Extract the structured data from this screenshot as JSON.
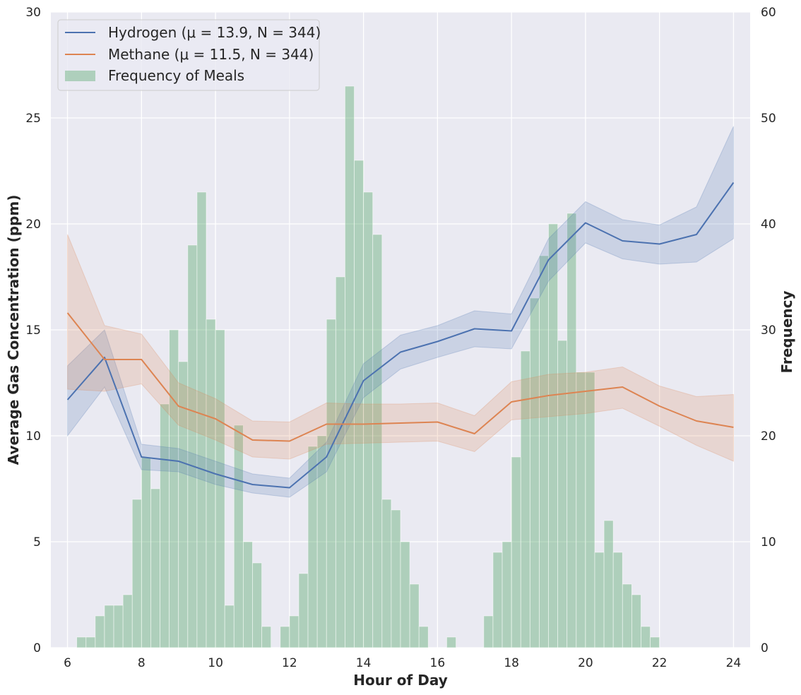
{
  "chart_data": {
    "type": "line",
    "xlabel": "Hour of Day",
    "ylabel_left": "Average Gas Concentration (ppm)",
    "ylabel_right": "Frequency",
    "xlim": [
      5.55,
      24.45
    ],
    "ylim_left": [
      0,
      30
    ],
    "ylim_right": [
      0,
      60
    ],
    "x_ticks": [
      6,
      8,
      10,
      12,
      14,
      16,
      18,
      20,
      22,
      24
    ],
    "y_ticks_left": [
      0,
      5,
      10,
      15,
      20,
      25,
      30
    ],
    "y_ticks_right": [
      0,
      10,
      20,
      30,
      40,
      50,
      60
    ],
    "grid": true,
    "legend_position": "top-left",
    "colors": {
      "hydrogen": "#4c72b0",
      "methane": "#dd8452",
      "meals": "#55a868",
      "background": "#eaeaf2",
      "grid": "#ffffff"
    },
    "series": [
      {
        "name": "Hydrogen (μ = 13.9, N = 344)",
        "color": "#4c72b0",
        "x": [
          6,
          7,
          8,
          9,
          10,
          11,
          12,
          13,
          14,
          15,
          16,
          17,
          18,
          19,
          20,
          21,
          22,
          23,
          24
        ],
        "y": [
          11.7,
          13.7,
          9.0,
          8.8,
          8.2,
          7.7,
          7.55,
          9.0,
          12.6,
          13.95,
          14.45,
          15.05,
          14.95,
          18.3,
          20.05,
          19.2,
          19.05,
          19.5,
          21.95
        ],
        "lower": [
          10.0,
          12.3,
          8.4,
          8.3,
          7.7,
          7.3,
          7.1,
          8.3,
          11.8,
          13.15,
          13.7,
          14.2,
          14.1,
          17.3,
          19.1,
          18.35,
          18.1,
          18.2,
          19.3
        ],
        "upper": [
          13.3,
          15.0,
          9.6,
          9.4,
          8.8,
          8.2,
          8.0,
          9.7,
          13.4,
          14.75,
          15.2,
          15.9,
          15.75,
          19.3,
          21.05,
          20.2,
          19.95,
          20.8,
          24.6
        ]
      },
      {
        "name": "Methane (μ = 11.5, N = 344)",
        "color": "#dd8452",
        "x": [
          6,
          7,
          8,
          9,
          10,
          11,
          12,
          13,
          14,
          15,
          16,
          17,
          18,
          19,
          20,
          21,
          22,
          23,
          24
        ],
        "y": [
          15.8,
          13.6,
          13.6,
          11.4,
          10.8,
          9.8,
          9.75,
          10.55,
          10.55,
          10.6,
          10.65,
          10.1,
          11.6,
          11.9,
          12.1,
          12.3,
          11.4,
          10.7,
          10.4
        ],
        "lower": [
          12.2,
          12.1,
          12.45,
          10.5,
          9.8,
          9.0,
          8.9,
          9.6,
          9.65,
          9.7,
          9.75,
          9.25,
          10.75,
          10.9,
          11.05,
          11.3,
          10.45,
          9.55,
          8.8
        ],
        "upper": [
          19.5,
          15.2,
          14.8,
          12.5,
          11.75,
          10.7,
          10.65,
          11.55,
          11.5,
          11.5,
          11.55,
          10.95,
          12.55,
          12.9,
          13.0,
          13.25,
          12.35,
          11.85,
          11.95
        ]
      }
    ],
    "histogram": {
      "name": "Frequency of Meals",
      "color": "#55a868",
      "bin_width": 0.25,
      "bin_starts": [
        6.25,
        6.5,
        6.75,
        7.0,
        7.25,
        7.5,
        7.75,
        8.0,
        8.25,
        8.5,
        8.75,
        9.0,
        9.25,
        9.5,
        9.75,
        10.0,
        10.25,
        10.5,
        10.75,
        11.0,
        11.25,
        11.75,
        12.0,
        12.25,
        12.5,
        12.75,
        13.0,
        13.25,
        13.5,
        13.75,
        14.0,
        14.25,
        14.5,
        14.75,
        15.0,
        15.25,
        15.5,
        16.25,
        17.25,
        17.5,
        17.75,
        18.0,
        18.25,
        18.5,
        18.75,
        19.0,
        19.25,
        19.5,
        19.75,
        20.0,
        20.25,
        20.5,
        20.75,
        21.0,
        21.25,
        21.5,
        21.75
      ],
      "counts": [
        1,
        1,
        3,
        4,
        4,
        5,
        14,
        18,
        15,
        23,
        30,
        27,
        38,
        43,
        31,
        30,
        4,
        21,
        10,
        8,
        2,
        2,
        3,
        7,
        19,
        20,
        31,
        35,
        53,
        46,
        43,
        39,
        14,
        13,
        10,
        6,
        2,
        1,
        3,
        9,
        10,
        18,
        28,
        33,
        37,
        40,
        29,
        41,
        26,
        26,
        9,
        12,
        9,
        6,
        5,
        2,
        1
      ]
    }
  }
}
